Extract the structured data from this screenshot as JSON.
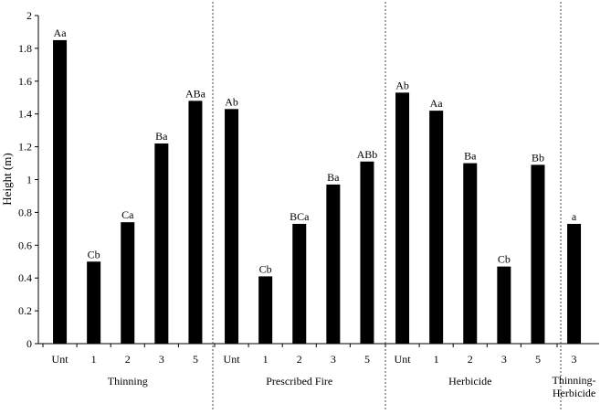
{
  "chart_data": {
    "type": "bar",
    "ylabel": "Height (m)",
    "ylim": [
      0,
      2
    ],
    "yticks": [
      "0",
      "0.2",
      "0.4",
      "0.6",
      "0.8",
      "1",
      "1.2",
      "1.4",
      "1.6",
      "1.8",
      "2"
    ],
    "bar_color": "#000000",
    "groups": [
      {
        "name": "Thinning",
        "categories": [
          "Unt",
          "1",
          "2",
          "3",
          "5"
        ],
        "values": [
          1.85,
          0.5,
          0.74,
          1.22,
          1.48
        ],
        "labels": [
          "Aa",
          "Cb",
          "Ca",
          "Ba",
          "ABa"
        ]
      },
      {
        "name": "Prescribed Fire",
        "categories": [
          "Unt",
          "1",
          "2",
          "3",
          "5"
        ],
        "values": [
          1.43,
          0.41,
          0.73,
          0.97,
          1.11
        ],
        "labels": [
          "Ab",
          "Cb",
          "BCa",
          "Ba",
          "ABb"
        ]
      },
      {
        "name": "Herbicide",
        "categories": [
          "Unt",
          "1",
          "2",
          "3",
          "5"
        ],
        "values": [
          1.53,
          1.42,
          1.1,
          0.47,
          1.09
        ],
        "labels": [
          "Ab",
          "Aa",
          "Ba",
          "Cb",
          "Bb"
        ]
      },
      {
        "name": "Thinning-\nHerbicide",
        "name_lines": [
          "Thinning-",
          "Herbicide"
        ],
        "categories": [
          "3"
        ],
        "values": [
          0.73
        ],
        "labels": [
          "a"
        ]
      }
    ]
  }
}
